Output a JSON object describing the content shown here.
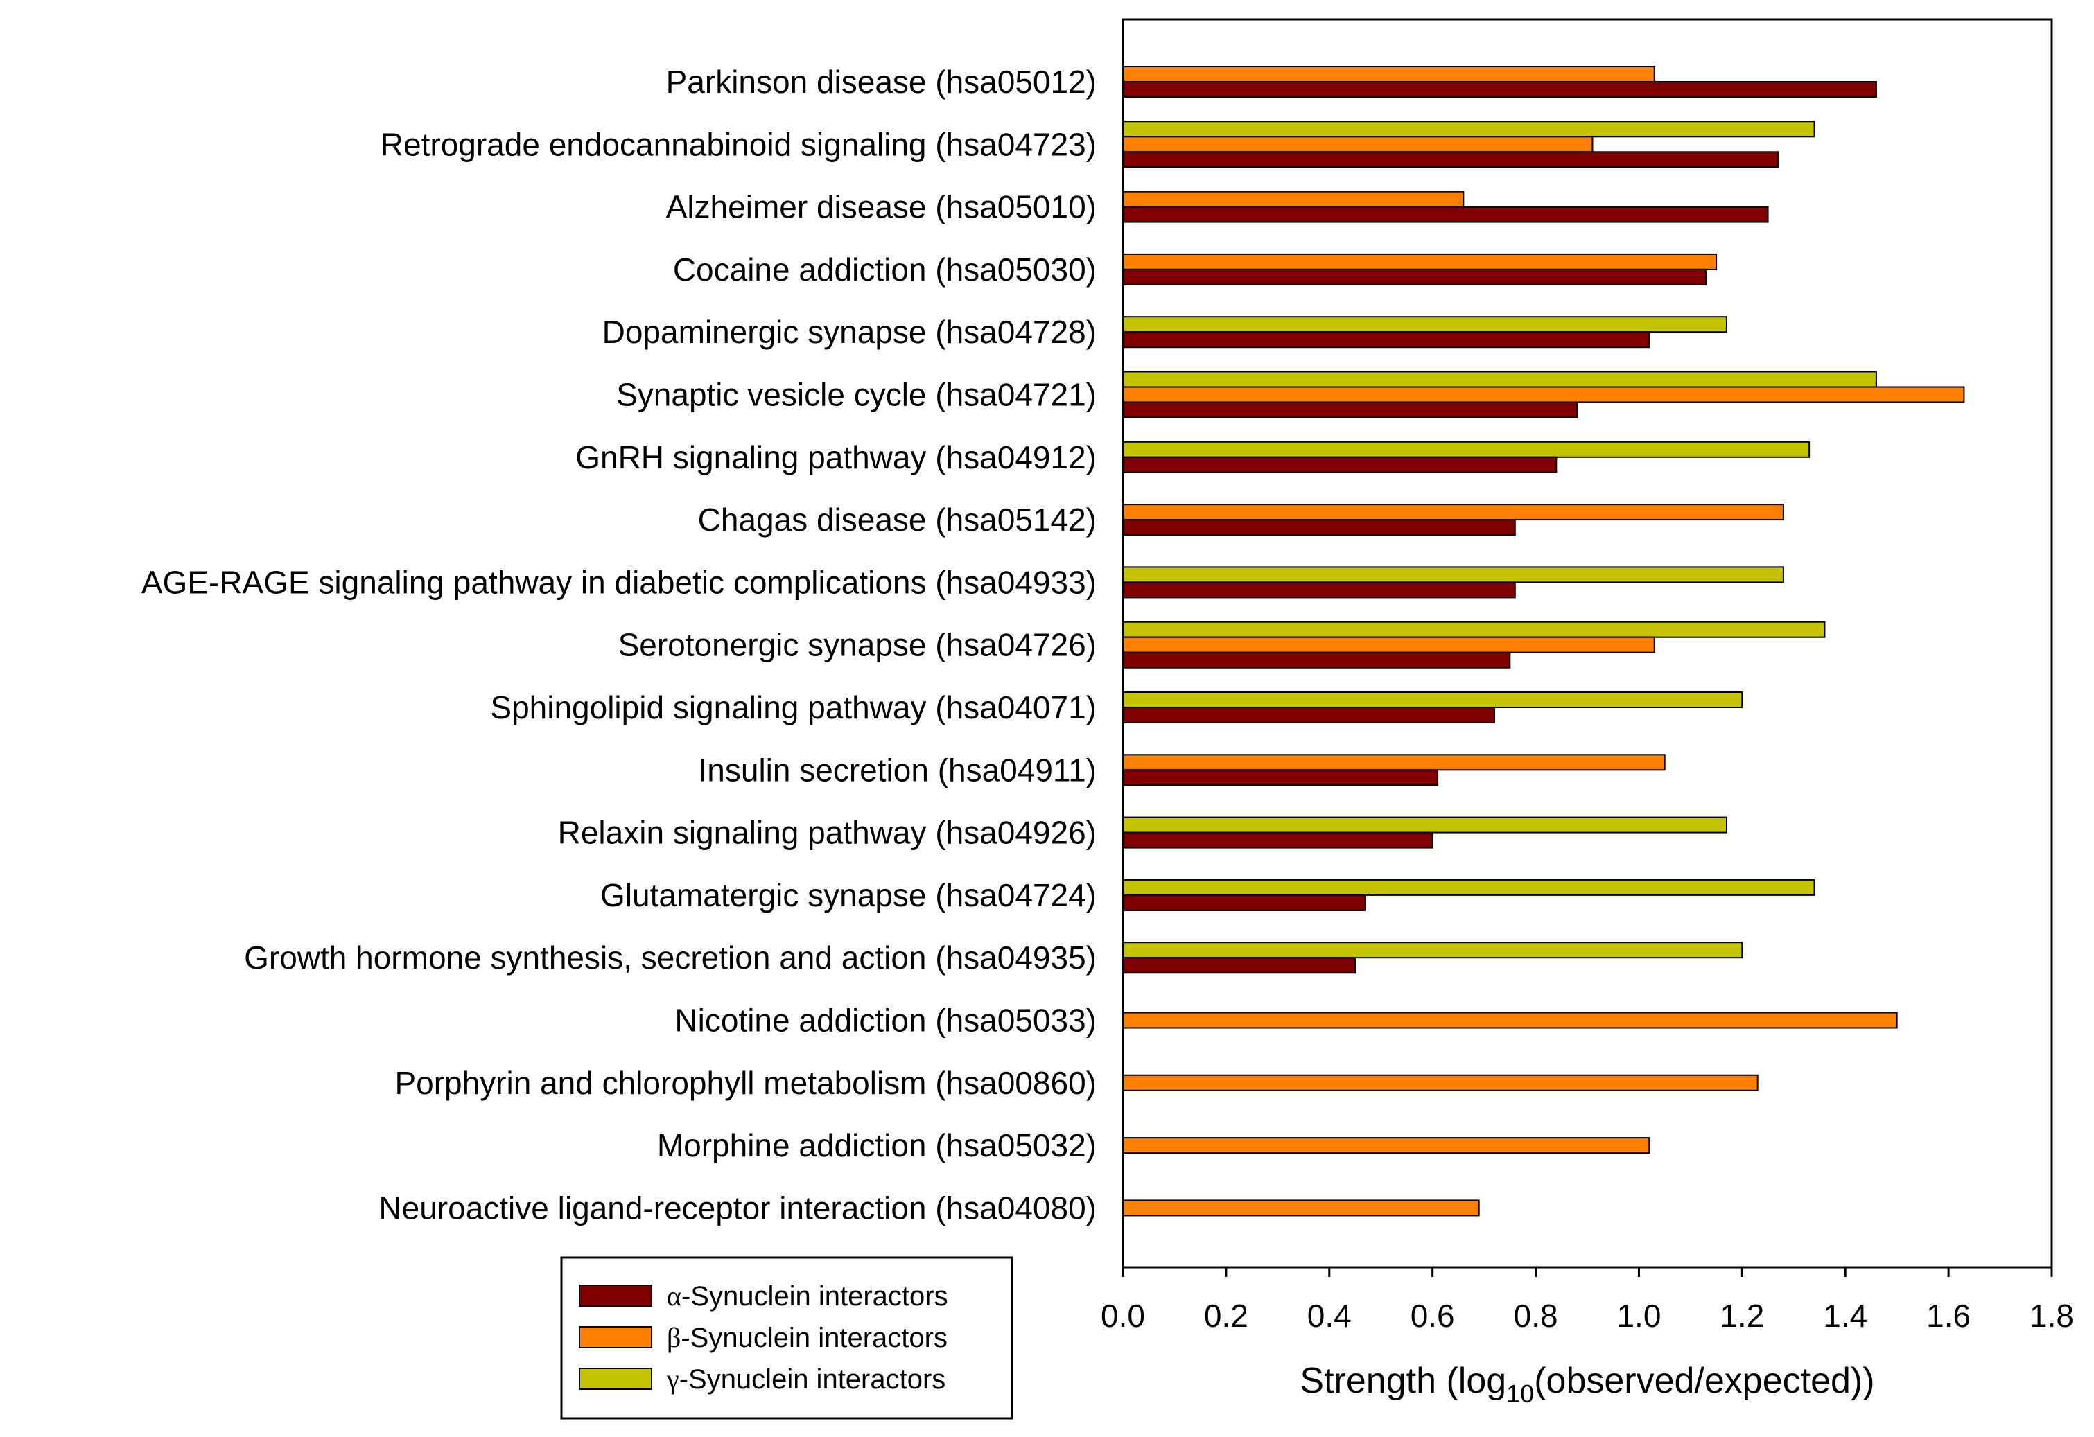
{
  "chart_data": {
    "type": "bar",
    "orientation": "horizontal",
    "title": "",
    "xlabel": {
      "base": "Strength (log",
      "sub": "10",
      "rest": "(observed/expected))"
    },
    "ylabel": "",
    "xlim": [
      0,
      1.8
    ],
    "xticks": [
      "0.0",
      "0.2",
      "0.4",
      "0.6",
      "0.8",
      "1.0",
      "1.2",
      "1.4",
      "1.6",
      "1.8"
    ],
    "categories": [
      "Parkinson disease (hsa05012)",
      "Retrograde endocannabinoid signaling (hsa04723)",
      "Alzheimer disease (hsa05010)",
      "Cocaine addiction (hsa05030)",
      "Dopaminergic synapse (hsa04728)",
      "Synaptic vesicle cycle (hsa04721)",
      "GnRH signaling pathway (hsa04912)",
      "Chagas disease (hsa05142)",
      "AGE-RAGE signaling pathway in diabetic complications (hsa04933)",
      "Serotonergic synapse (hsa04726)",
      "Sphingolipid signaling pathway (hsa04071)",
      "Insulin secretion (hsa04911)",
      "Relaxin signaling pathway (hsa04926)",
      "Glutamatergic synapse (hsa04724)",
      "Growth hormone synthesis, secretion and action (hsa04935)",
      "Nicotine addiction (hsa05033)",
      "Porphyrin and chlorophyll metabolism (hsa00860)",
      "Morphine addiction (hsa05032)",
      "Neuroactive ligand-receptor interaction (hsa04080)"
    ],
    "series": [
      {
        "name": "γ-Synuclein interactors",
        "legend_greek": "γ",
        "legend_rest": "-Synuclein interactors",
        "color": "#c4c400",
        "values": [
          null,
          1.34,
          null,
          null,
          1.17,
          1.46,
          1.33,
          null,
          1.28,
          1.36,
          1.2,
          null,
          1.17,
          1.34,
          1.2,
          null,
          null,
          null,
          null
        ]
      },
      {
        "name": "β-Synuclein interactors",
        "legend_greek": "β",
        "legend_rest": "-Synuclein interactors",
        "color": "#ff8000",
        "values": [
          1.03,
          0.91,
          0.66,
          1.15,
          null,
          1.63,
          null,
          1.28,
          null,
          1.03,
          null,
          1.05,
          null,
          null,
          null,
          1.5,
          1.23,
          1.02,
          0.69
        ]
      },
      {
        "name": "α-Synuclein interactors",
        "legend_greek": "α",
        "legend_rest": "-Synuclein interactors",
        "color": "#800000",
        "values": [
          1.46,
          1.27,
          1.25,
          1.13,
          1.02,
          0.88,
          0.84,
          0.76,
          0.76,
          0.75,
          0.72,
          0.61,
          0.6,
          0.47,
          0.45,
          null,
          null,
          null,
          null
        ]
      }
    ],
    "legend": {
      "position": "bottom-left",
      "order": [
        "α-Synuclein interactors",
        "β-Synuclein interactors",
        "γ-Synuclein interactors"
      ]
    },
    "grid": false
  }
}
